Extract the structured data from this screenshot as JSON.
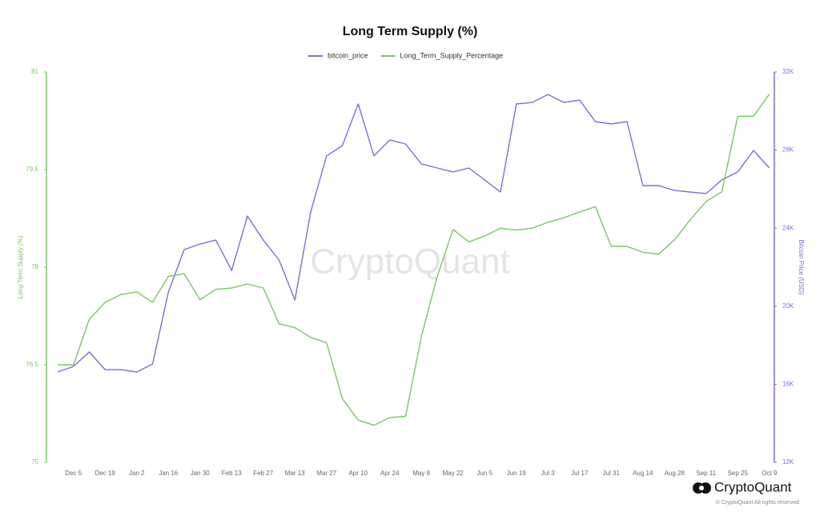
{
  "chart_data": {
    "type": "line",
    "title": "Long Term Supply (%)",
    "ylabel": "Long Term Supply (%)",
    "y2label": "Bitcoin Price (USD)",
    "watermark": "CryptoQuant",
    "brand": "CryptoQuant",
    "copyright": "© CryptoQuant All rights reserved",
    "categories": [
      null,
      "Dec 5",
      null,
      "Dec 19",
      null,
      "Jan 2",
      null,
      "Jan 16",
      null,
      "Jan 30",
      null,
      "Feb 13",
      null,
      "Feb 27",
      null,
      "Mar 13",
      null,
      "Mar 27",
      null,
      "Apr 10",
      null,
      "Apr 24",
      null,
      "May 8",
      null,
      "May 22",
      null,
      "Jun 5",
      null,
      "Jun 19",
      null,
      "Jul 3",
      null,
      "Jul 17",
      null,
      "Jul 31",
      null,
      "Aug 14",
      null,
      "Aug 28",
      null,
      "Sep 11",
      null,
      "Sep 25",
      null,
      "Oct 9"
    ],
    "series": [
      {
        "name": "bitcoin_price",
        "color": "#7b6fd6",
        "axis": "y2",
        "values": [
          16630,
          16920,
          17660,
          16750,
          16750,
          16630,
          17040,
          20730,
          22900,
          23190,
          23390,
          21830,
          24620,
          23390,
          22370,
          20320,
          24830,
          27700,
          28230,
          30360,
          27700,
          28520,
          28310,
          27290,
          27080,
          26880,
          27080,
          26470,
          25850,
          30360,
          30440,
          30850,
          30440,
          30560,
          29460,
          29340,
          29460,
          26180,
          26180,
          25930,
          25850,
          25770,
          26470,
          26880,
          27980,
          27080
        ]
      },
      {
        "name": "Long_Term_Supply_Percentage",
        "color": "#7cc46a",
        "values": [
          76.5,
          76.5,
          77.2,
          77.46,
          77.58,
          77.62,
          77.46,
          77.86,
          77.9,
          77.5,
          77.66,
          77.68,
          77.74,
          77.68,
          77.13,
          77.07,
          76.92,
          76.84,
          75.98,
          75.65,
          75.57,
          75.69,
          75.71,
          76.94,
          77.86,
          78.58,
          78.39,
          78.48,
          78.6,
          78.57,
          78.6,
          78.69,
          78.76,
          78.85,
          78.93,
          78.32,
          78.32,
          78.23,
          78.2,
          78.42,
          78.73,
          79.01,
          79.16,
          80.32,
          80.32,
          80.66
        ]
      }
    ],
    "ylim": [
      75,
      81
    ],
    "yticks": [
      75,
      76.5,
      78,
      79.5,
      81
    ],
    "y2lim": [
      12000,
      32000
    ],
    "y2ticks": [
      {
        "value": 12000,
        "label": "12K"
      },
      {
        "value": 16000,
        "label": "16K"
      },
      {
        "value": 20000,
        "label": "20K"
      },
      {
        "value": 24000,
        "label": "24K"
      },
      {
        "value": 28000,
        "label": "28K"
      },
      {
        "value": 32000,
        "label": "32K"
      }
    ],
    "grid": false,
    "legend": "top"
  }
}
